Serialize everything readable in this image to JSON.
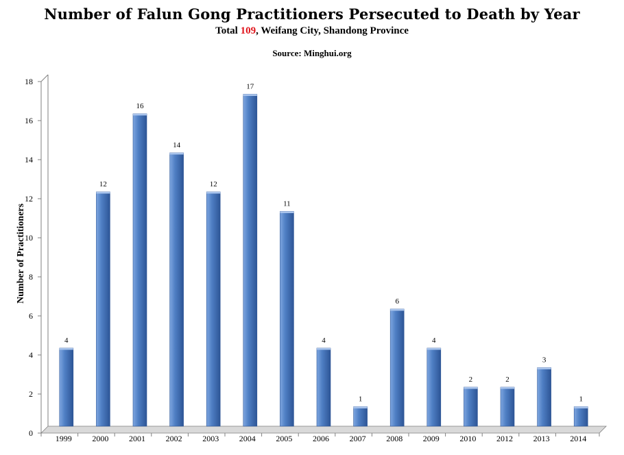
{
  "header": {
    "title": "Number of Falun Gong Practitioners  Persecuted to Death by Year",
    "subtitle_prefix": "Total ",
    "subtitle_total": "109",
    "subtitle_suffix": ", Weifang City, Shandong Province",
    "source": "Source: Minghui.org"
  },
  "colors": {
    "bar_light": "#7ea6e0",
    "bar_mid": "#4f7fc4",
    "bar_dark": "#2d5596",
    "bar_top": "#a9c4ec",
    "axis": "#7f7f7f",
    "floor": "#d9d9d9",
    "total_highlight": "#e0141b"
  },
  "chart_data": {
    "type": "bar",
    "title": "Number of Falun Gong Practitioners  Persecuted to Death by Year",
    "subtitle": "Total 109, Weifang City, Shandong Province",
    "xlabel": "",
    "ylabel": "Number of Practitioners",
    "categories": [
      "1999",
      "2000",
      "2001",
      "2002",
      "2003",
      "2004",
      "2005",
      "2006",
      "2007",
      "2008",
      "2009",
      "2010",
      "2012",
      "2013",
      "2014"
    ],
    "values": [
      4,
      12,
      16,
      14,
      12,
      17,
      11,
      4,
      1,
      6,
      4,
      2,
      2,
      3,
      1
    ],
    "ylim": [
      0,
      18
    ],
    "yticks": [
      0,
      2,
      4,
      6,
      8,
      10,
      12,
      14,
      16,
      18
    ],
    "grid": false,
    "legend": "none",
    "data_labels": true
  }
}
